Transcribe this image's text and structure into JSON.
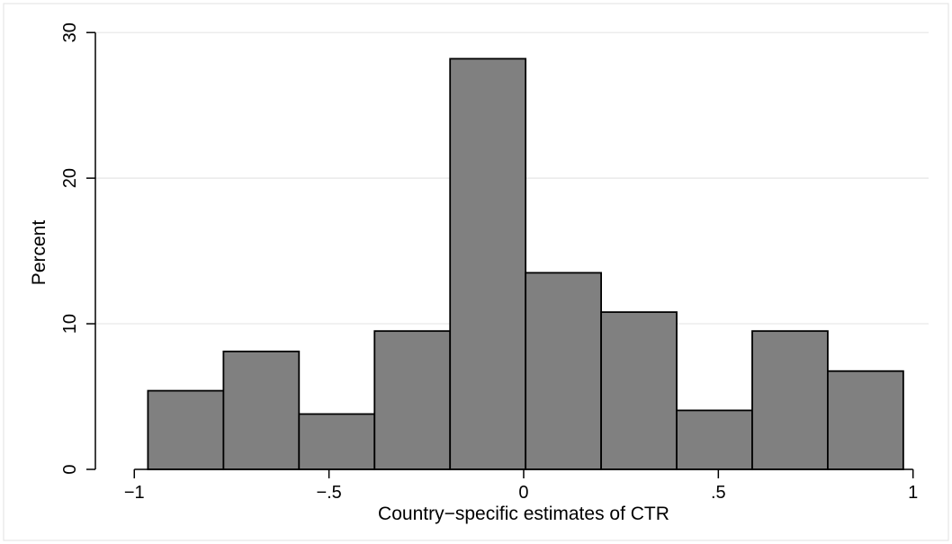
{
  "chart_data": {
    "type": "bar",
    "title": "",
    "xlabel": "Country−specific estimates of CTR",
    "ylabel": "Percent",
    "xlim": [
      -1.1,
      1.04
    ],
    "ylim": [
      0,
      31
    ],
    "x_ticks": [
      {
        "value": -1,
        "label": "−1"
      },
      {
        "value": -0.5,
        "label": "−.5"
      },
      {
        "value": 0,
        "label": "0"
      },
      {
        "value": 0.5,
        "label": ".5"
      },
      {
        "value": 1,
        "label": "1"
      }
    ],
    "y_ticks": [
      {
        "value": 0,
        "label": "0"
      },
      {
        "value": 10,
        "label": "10"
      },
      {
        "value": 20,
        "label": "20"
      },
      {
        "value": 30,
        "label": "30"
      }
    ],
    "grid": true,
    "bin_width": 0.194,
    "bins": [
      {
        "start": -0.965,
        "value": 5.4
      },
      {
        "start": -0.771,
        "value": 8.1
      },
      {
        "start": -0.577,
        "value": 3.8
      },
      {
        "start": -0.383,
        "value": 9.5
      },
      {
        "start": -0.189,
        "value": 28.2
      },
      {
        "start": 0.005,
        "value": 13.5
      },
      {
        "start": 0.199,
        "value": 10.8
      },
      {
        "start": 0.393,
        "value": 4.05
      },
      {
        "start": 0.587,
        "value": 9.5
      },
      {
        "start": 0.781,
        "value": 6.75
      }
    ],
    "colors": {
      "bar_fill": "#808080",
      "bar_stroke": "#000000",
      "grid": "#e6e6e6",
      "axis": "#000000",
      "frame": "#e0e0e0"
    }
  }
}
